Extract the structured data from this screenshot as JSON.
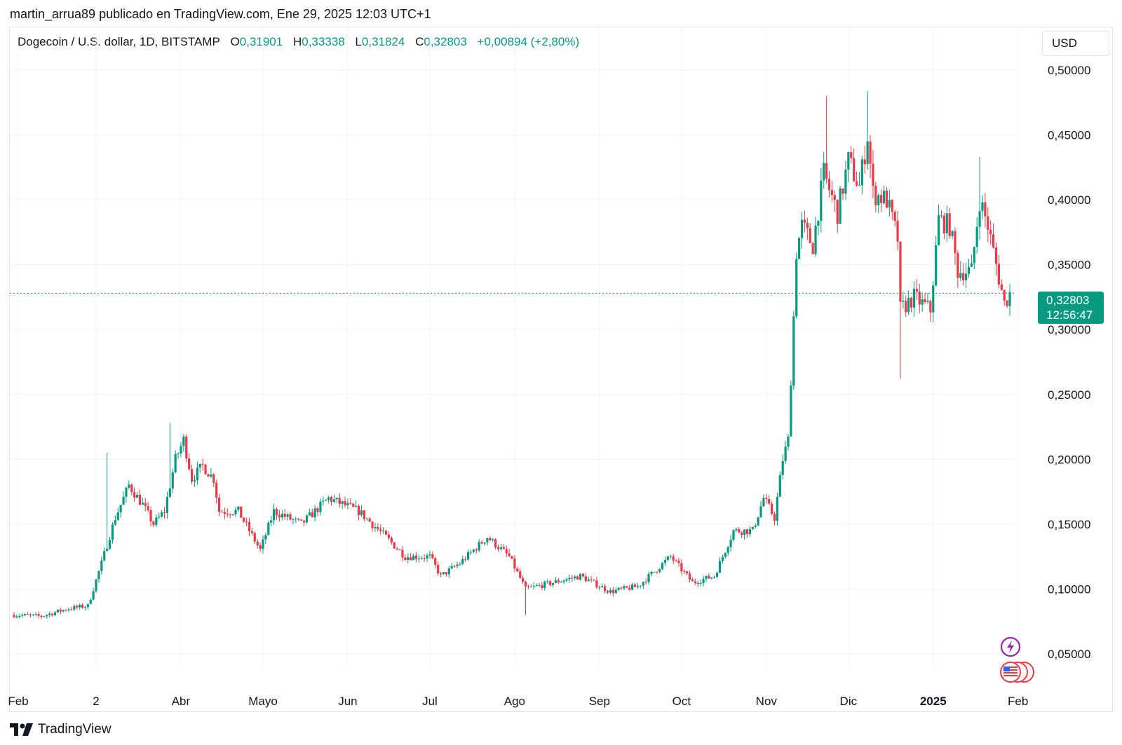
{
  "publisher_line": "martin_arrua89 publicado en TradingView.com, Ene 29, 2025 12:03 UTC+1",
  "legend": {
    "symbol": "Dogecoin / U.S. dollar, 1D, BITSTAMP",
    "o_label": "O",
    "o_value": "0,31901",
    "h_label": "H",
    "h_value": "0,33338",
    "l_label": "L",
    "l_value": "0,31824",
    "c_label": "C",
    "c_value": "0,32803",
    "change": "+0,00894 (+2,80%)"
  },
  "currency": "USD",
  "last_price": {
    "price": "0,32803",
    "countdown": "12:56:47"
  },
  "brand": "TradingView",
  "colors": {
    "up": "#089981",
    "down": "#f23645",
    "grid": "#f0f3fa",
    "text": "#131722"
  },
  "icons": [
    "lightning-event-icon",
    "us-flag-event-icon"
  ],
  "chart_data": {
    "type": "candlestick",
    "title": "Dogecoin / U.S. dollar, 1D, BITSTAMP",
    "y_ticks": [
      "0,50000",
      "0,45000",
      "0,40000",
      "0,35000",
      "0,30000",
      "0,25000",
      "0,20000",
      "0,15000",
      "0,10000",
      "0,05000"
    ],
    "x_ticks": [
      "Feb",
      "2",
      "Abr",
      "Mayo",
      "Jun",
      "Jul",
      "Ago",
      "Sep",
      "Oct",
      "Nov",
      "Dic",
      "2025",
      "Feb"
    ],
    "ylim": [
      0.05,
      0.5
    ],
    "grid": true,
    "x_range": [
      "2024-01-31",
      "2025-01-29"
    ],
    "last_close": 0.32803,
    "path_points": [
      [
        "2024-01-31",
        0.08
      ],
      [
        "2024-02-10",
        0.079
      ],
      [
        "2024-02-20",
        0.085
      ],
      [
        "2024-02-27",
        0.087
      ],
      [
        "2024-03-03",
        0.12
      ],
      [
        "2024-03-08",
        0.155
      ],
      [
        "2024-03-13",
        0.18
      ],
      [
        "2024-03-18",
        0.165
      ],
      [
        "2024-03-22",
        0.15
      ],
      [
        "2024-03-26",
        0.16
      ],
      [
        "2024-03-30",
        0.2
      ],
      [
        "2024-04-02",
        0.215
      ],
      [
        "2024-04-05",
        0.185
      ],
      [
        "2024-04-09",
        0.195
      ],
      [
        "2024-04-13",
        0.185
      ],
      [
        "2024-04-15",
        0.16
      ],
      [
        "2024-04-22",
        0.16
      ],
      [
        "2024-04-30",
        0.13
      ],
      [
        "2024-05-05",
        0.16
      ],
      [
        "2024-05-15",
        0.15
      ],
      [
        "2024-05-25",
        0.17
      ],
      [
        "2024-06-05",
        0.16
      ],
      [
        "2024-06-15",
        0.14
      ],
      [
        "2024-06-22",
        0.125
      ],
      [
        "2024-07-01",
        0.125
      ],
      [
        "2024-07-05",
        0.11
      ],
      [
        "2024-07-12",
        0.12
      ],
      [
        "2024-07-22",
        0.14
      ],
      [
        "2024-07-30",
        0.125
      ],
      [
        "2024-08-05",
        0.1
      ],
      [
        "2024-08-15",
        0.105
      ],
      [
        "2024-08-25",
        0.11
      ],
      [
        "2024-09-05",
        0.098
      ],
      [
        "2024-09-15",
        0.102
      ],
      [
        "2024-09-27",
        0.125
      ],
      [
        "2024-10-05",
        0.105
      ],
      [
        "2024-10-13",
        0.11
      ],
      [
        "2024-10-20",
        0.145
      ],
      [
        "2024-10-27",
        0.145
      ],
      [
        "2024-10-31",
        0.17
      ],
      [
        "2024-11-04",
        0.155
      ],
      [
        "2024-11-07",
        0.2
      ],
      [
        "2024-11-09",
        0.215
      ],
      [
        "2024-11-11",
        0.31
      ],
      [
        "2024-11-12",
        0.36
      ],
      [
        "2024-11-14",
        0.38
      ],
      [
        "2024-11-18",
        0.365
      ],
      [
        "2024-11-22",
        0.42
      ],
      [
        "2024-11-27",
        0.39
      ],
      [
        "2024-12-01",
        0.43
      ],
      [
        "2024-12-05",
        0.41
      ],
      [
        "2024-12-08",
        0.45
      ],
      [
        "2024-12-10",
        0.405
      ],
      [
        "2024-12-15",
        0.4
      ],
      [
        "2024-12-19",
        0.37
      ],
      [
        "2024-12-20",
        0.315
      ],
      [
        "2024-12-25",
        0.325
      ],
      [
        "2024-12-31",
        0.315
      ],
      [
        "2025-01-03",
        0.385
      ],
      [
        "2025-01-07",
        0.38
      ],
      [
        "2025-01-10",
        0.345
      ],
      [
        "2025-01-15",
        0.345
      ],
      [
        "2025-01-18",
        0.4
      ],
      [
        "2025-01-21",
        0.38
      ],
      [
        "2025-01-24",
        0.35
      ],
      [
        "2025-01-27",
        0.32
      ],
      [
        "2025-01-29",
        0.328
      ]
    ],
    "marked_extremes": [
      [
        "2024-12-08",
        0.484,
        "high"
      ],
      [
        "2024-11-23",
        0.48,
        "high"
      ],
      [
        "2025-01-18",
        0.433,
        "high"
      ],
      [
        "2024-12-20",
        0.262,
        "low"
      ],
      [
        "2024-08-05",
        0.08,
        "low"
      ],
      [
        "2024-03-05",
        0.205,
        "high"
      ],
      [
        "2024-03-28",
        0.228,
        "high"
      ]
    ]
  }
}
